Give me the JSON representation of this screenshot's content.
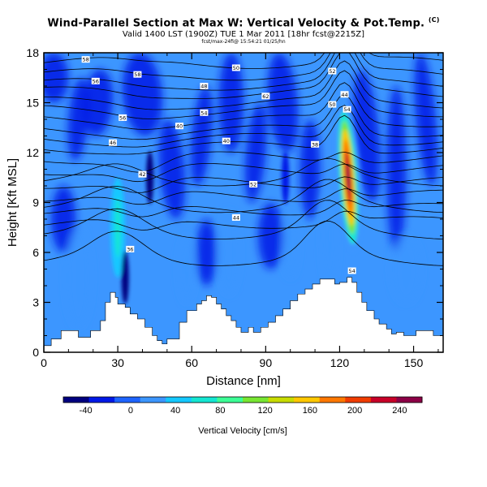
{
  "chart_data": {
    "type": "heatmap",
    "title": "Wind-Parallel Section at Max W: Vertical Velocity & Pot.Temp.",
    "title_mark": "(C)",
    "subtitle": "Valid 1400 LST (1900Z) TUE 1 Mar 2011 [18hr fcst@2215Z]",
    "subtitle_small": "fcst/max-24fi@ 15:54:21 01/25/hn",
    "xlabel": "Distance [nm]",
    "ylabel": "Height [Kft MSL]",
    "xlim": [
      0,
      162
    ],
    "ylim": [
      0,
      18
    ],
    "xticks": [
      0,
      30,
      60,
      90,
      120,
      150
    ],
    "yticks": [
      0,
      3,
      6,
      9,
      12,
      15,
      18
    ],
    "colorbar": {
      "label": "Vertical Velocity [cm/s]",
      "min": -60,
      "max": 260,
      "tick_values": [
        -40,
        0,
        40,
        80,
        120,
        160,
        200,
        240
      ],
      "colors": [
        "#00007f",
        "#0019e6",
        "#1e64ff",
        "#3c96ff",
        "#14c8ff",
        "#14e6d2",
        "#3cff96",
        "#78e632",
        "#c8dc00",
        "#ffc800",
        "#ff7800",
        "#f03c00",
        "#c80028",
        "#8c0046"
      ]
    },
    "terrain_kft": [
      [
        0,
        0.4
      ],
      [
        3,
        0.8
      ],
      [
        7,
        1.3
      ],
      [
        12,
        1.3
      ],
      [
        14,
        0.9
      ],
      [
        17,
        0.9
      ],
      [
        19,
        1.3
      ],
      [
        23,
        1.9
      ],
      [
        25,
        3.0
      ],
      [
        27,
        3.6
      ],
      [
        29,
        3.3
      ],
      [
        30,
        2.9
      ],
      [
        33,
        2.7
      ],
      [
        35,
        2.3
      ],
      [
        38,
        2.0
      ],
      [
        41,
        1.5
      ],
      [
        44,
        1.0
      ],
      [
        46,
        0.7
      ],
      [
        48,
        0.5
      ],
      [
        50,
        0.8
      ],
      [
        55,
        1.8
      ],
      [
        58,
        2.5
      ],
      [
        62,
        2.9
      ],
      [
        64,
        3.1
      ],
      [
        66,
        3.4
      ],
      [
        68,
        3.3
      ],
      [
        70,
        2.9
      ],
      [
        72,
        2.6
      ],
      [
        74,
        2.2
      ],
      [
        76,
        1.9
      ],
      [
        78,
        1.5
      ],
      [
        80,
        1.2
      ],
      [
        83,
        1.5
      ],
      [
        85,
        1.2
      ],
      [
        88,
        1.5
      ],
      [
        91,
        1.8
      ],
      [
        94,
        2.2
      ],
      [
        97,
        2.6
      ],
      [
        100,
        3.1
      ],
      [
        103,
        3.5
      ],
      [
        106,
        3.8
      ],
      [
        109,
        4.1
      ],
      [
        112,
        4.4
      ],
      [
        115,
        4.4
      ],
      [
        118,
        4.1
      ],
      [
        120,
        4.2
      ],
      [
        123,
        4.5
      ],
      [
        125,
        4.2
      ],
      [
        127,
        3.6
      ],
      [
        129,
        3.0
      ],
      [
        131,
        2.5
      ],
      [
        134,
        2.0
      ],
      [
        136,
        1.7
      ],
      [
        139,
        1.4
      ],
      [
        141,
        1.1
      ],
      [
        143,
        1.2
      ],
      [
        146,
        1.0
      ],
      [
        151,
        1.3
      ],
      [
        155,
        1.3
      ],
      [
        158,
        1.0
      ],
      [
        162,
        0.8
      ]
    ],
    "velocity_features": [
      {
        "kind": "updraft-core",
        "x_nm": 123.5,
        "height_kft": 10.5,
        "max_cm_s": 250
      },
      {
        "kind": "updraft",
        "x_nm": 30,
        "height_kft": 7.5,
        "max_cm_s": 40
      },
      {
        "kind": "downdraft",
        "x_nm": 33,
        "height_kft": 4.5,
        "min_cm_s": -40
      },
      {
        "kind": "downdraft",
        "x_nm": 43,
        "height_kft": 10.5,
        "min_cm_s": -40
      },
      {
        "kind": "downdraft",
        "x_nm": 98,
        "height_kft": 10.5,
        "min_cm_s": -30
      }
    ],
    "isentrope_labels": [
      "58",
      "56",
      "48",
      "50",
      "56",
      "54",
      "52",
      "50",
      "44",
      "54",
      "46",
      "42",
      "40",
      "38",
      "36",
      "52",
      "44",
      "54",
      "58",
      "62",
      "40"
    ]
  }
}
